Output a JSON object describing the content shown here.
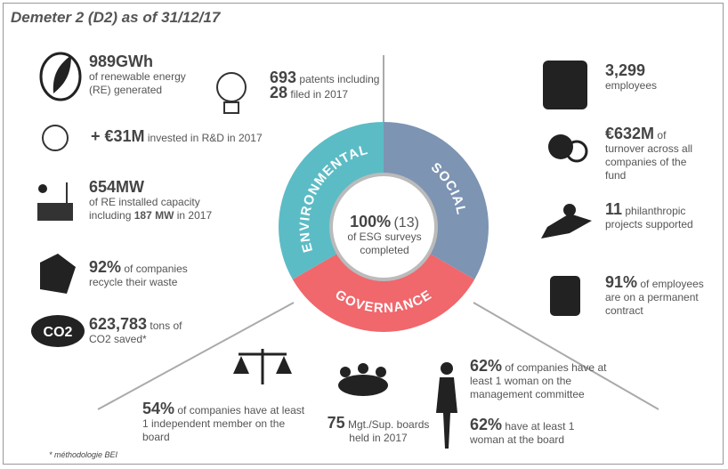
{
  "title": "Demeter 2 (D2) as of 31/12/17",
  "center": {
    "figure": "100%",
    "count": "(13)",
    "text": "of ESG surveys completed"
  },
  "segments": [
    "ENVIRONMENTAL",
    "SOCIAL",
    "GOVERNANCE"
  ],
  "environmental": [
    {
      "figure": "989GWh",
      "text": "of renewable energy (RE) generated"
    },
    {
      "figure": "693",
      "text": "patents including",
      "figure_2": "28",
      "text_2": "filed in 2017"
    },
    {
      "figure": "+ €31M",
      "text": "invested in R&D in 2017"
    },
    {
      "figure": "654MW",
      "text": "of RE installed capacity including",
      "figure_2": "187 MW",
      "text_2": "in 2017"
    },
    {
      "figure": "92%",
      "text": "of companies recycle their waste"
    },
    {
      "figure": "623,783",
      "text": "tons of CO2 saved*",
      "icon": "CO2"
    }
  ],
  "social": [
    {
      "figure": "3,299",
      "text": "employees"
    },
    {
      "figure": "€632M",
      "text": "of turnover across all companies of the fund"
    },
    {
      "figure": "11",
      "text": "philanthropic projects supported"
    },
    {
      "figure": "91%",
      "text": "of employees are on a permanent contract"
    }
  ],
  "governance": [
    {
      "figure": "54%",
      "text": "of companies have at least 1 independent member on the board"
    },
    {
      "figure": "75",
      "text": "Mgt./Sup. boards held in 2017"
    },
    {
      "figure": "62%",
      "text": "of companies have at least 1 woman on the management committee"
    },
    {
      "figure": "62%",
      "text": "have at least 1 woman at the board"
    }
  ],
  "footnote": "* méthodologie BEI"
}
